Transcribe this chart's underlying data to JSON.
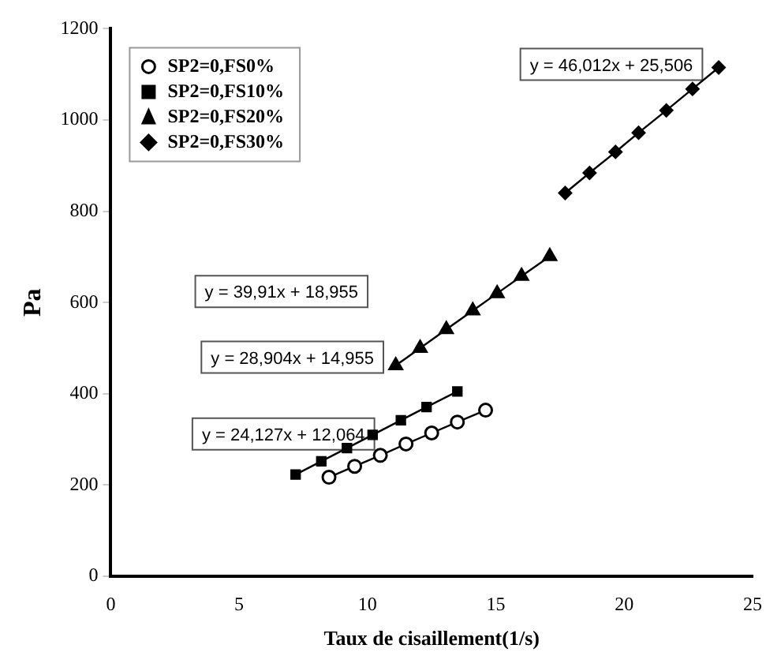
{
  "chart_data": {
    "type": "line",
    "xlabel": "Taux de cisaillement(1/s)",
    "ylabel": "Pa",
    "xlim": [
      0,
      25
    ],
    "xticks": [
      0,
      5,
      10,
      15,
      20,
      25
    ],
    "ylim": [
      0,
      1200
    ],
    "yticks": [
      0,
      200,
      400,
      600,
      800,
      1000,
      1200
    ],
    "grid": false,
    "legend": "top left",
    "series": [
      {
        "name": "SP2=0,FS0%",
        "color": "#000000",
        "marker": "circle",
        "x": [
          8.5,
          9.5,
          10.5,
          11.5,
          12.5,
          13.5,
          14.6
        ],
        "values": [
          217,
          241,
          265,
          290,
          314,
          338,
          364
        ]
      },
      {
        "name": "SP2=0,FS10%",
        "color": "#000000",
        "marker": "square",
        "x": [
          7.2,
          8.2,
          9.2,
          10.2,
          11.3,
          12.3,
          13.5
        ],
        "values": [
          223,
          252,
          281,
          310,
          342,
          371,
          405
        ]
      },
      {
        "name": "SP2=0,FS20%",
        "color": "#000000",
        "marker": "triangle",
        "x": [
          11.1,
          12.05,
          13.07,
          14.1,
          15.05,
          16.0,
          17.1
        ],
        "values": [
          462,
          500,
          541,
          582,
          620,
          658,
          701
        ]
      },
      {
        "name": "SP2=0,FS30%",
        "color": "#000000",
        "marker": "diamond",
        "x": [
          17.7,
          18.65,
          19.66,
          20.56,
          21.64,
          22.66,
          23.68
        ],
        "values": [
          840,
          884,
          930,
          972,
          1021,
          1068,
          1115
        ]
      }
    ],
    "annotations": [
      "y = 46,012x + 25,506",
      "y = 39,91x + 18,955",
      "y = 28,904x + 14,955",
      "y = 24,127x + 12,064"
    ]
  }
}
